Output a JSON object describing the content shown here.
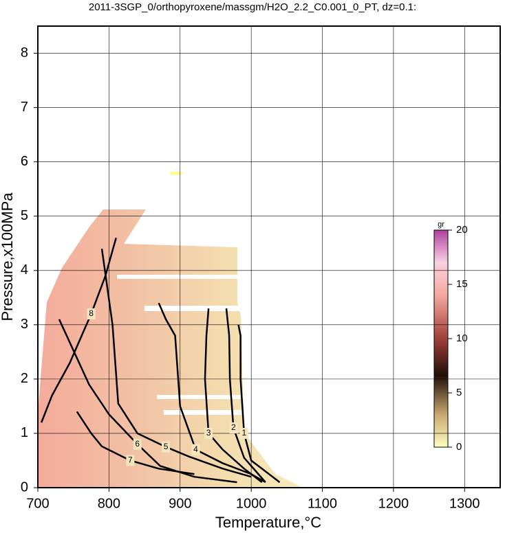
{
  "chart_data": {
    "type": "contour",
    "title": "2011-3SGP_0/orthopyroxene/massgm/H2O_2.2_C0.001_0_PT, dz=0.1:",
    "xlabel": "Temperature,°C",
    "ylabel": "Pressure,x100MPa",
    "xlim": [
      700,
      1350
    ],
    "ylim": [
      0,
      8.5
    ],
    "xticks": [
      700,
      800,
      900,
      1000,
      1100,
      1200,
      1300
    ],
    "yticks": [
      0,
      1,
      2,
      3,
      4,
      5,
      6,
      7,
      8
    ],
    "grid": true,
    "colorbar": {
      "label": "gr",
      "lim": [
        0,
        20
      ],
      "ticks": [
        0,
        5,
        10,
        15,
        20
      ]
    },
    "contours": [
      {
        "level": 8,
        "x": [
          705,
          720,
          745,
          775,
          795,
          810
        ],
        "y": [
          1.2,
          1.7,
          2.3,
          3.2,
          3.9,
          4.6
        ]
      },
      {
        "level": 7,
        "x": [
          755,
          775,
          790,
          830,
          870,
          920
        ],
        "y": [
          1.4,
          1.0,
          0.76,
          0.5,
          0.35,
          0.25
        ]
      },
      {
        "level": 6,
        "x": [
          730,
          772,
          800,
          840,
          872,
          920,
          980
        ],
        "y": [
          3.1,
          1.9,
          1.35,
          0.8,
          0.4,
          0.2,
          0.1
        ]
      },
      {
        "level": 5,
        "x": [
          790,
          805,
          813,
          840,
          880,
          913,
          960,
          1000
        ],
        "y": [
          4.4,
          3.0,
          1.55,
          1.0,
          0.75,
          0.57,
          0.35,
          0.2
        ]
      },
      {
        "level": 4,
        "x": [
          870,
          880,
          893,
          900,
          922,
          960,
          1000,
          1020
        ],
        "y": [
          3.4,
          3.1,
          2.8,
          1.5,
          0.7,
          0.45,
          0.25,
          0.1
        ]
      },
      {
        "level": 3,
        "x": [
          940,
          937,
          935,
          940,
          960,
          990,
          1015
        ],
        "y": [
          3.3,
          2.8,
          2.0,
          1.0,
          0.7,
          0.35,
          0.1
        ]
      },
      {
        "level": 2,
        "x": [
          965,
          969,
          970,
          975,
          990,
          1020
        ],
        "y": [
          3.3,
          2.8,
          2.0,
          1.1,
          0.55,
          0.1
        ]
      },
      {
        "level": 1,
        "x": [
          982,
          985,
          985,
          990,
          1000,
          1040
        ],
        "y": [
          3.0,
          2.8,
          2.0,
          1.0,
          0.5,
          0.1
        ]
      }
    ]
  }
}
